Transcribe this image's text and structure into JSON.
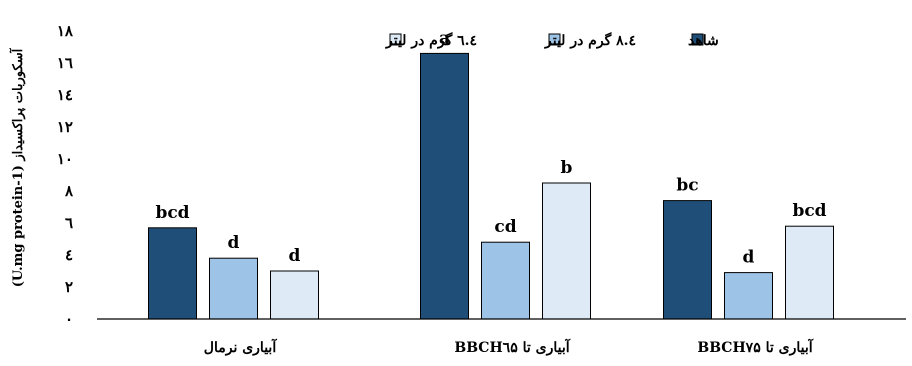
{
  "chart_data": {
    "type": "bar",
    "title": "",
    "xlabel": "",
    "ylabel": "آسکوربات پراکسیداز (U.mg protein-1)",
    "ylim": [
      0,
      18
    ],
    "yticks": [
      "۰",
      "۲",
      "٤",
      "٦",
      "۸",
      "۱۰",
      "۱۲",
      "۱٤",
      "۱٦",
      "۱۸"
    ],
    "categories": [
      "آبیاری نرمال",
      "آبیاری تا BBCH٦۵",
      "آبیاری تا BBCH۷۵"
    ],
    "series": [
      {
        "name": "شاهد",
        "color": "#1f4e79",
        "values": [
          5.7,
          16.6,
          7.4
        ],
        "labels": [
          "bcd",
          "a",
          "bc"
        ]
      },
      {
        "name": "٤.۸ گرم در لیتر",
        "color": "#9dc3e6",
        "values": [
          3.8,
          4.8,
          2.9
        ],
        "labels": [
          "d",
          "cd",
          "d"
        ]
      },
      {
        "name": "٦.٤ گرم در لیتر",
        "color": "#deebf7",
        "values": [
          3.0,
          8.5,
          5.8
        ],
        "labels": [
          "d",
          "b",
          "bcd"
        ]
      }
    ],
    "grid": false,
    "legend_position": "top-right"
  }
}
